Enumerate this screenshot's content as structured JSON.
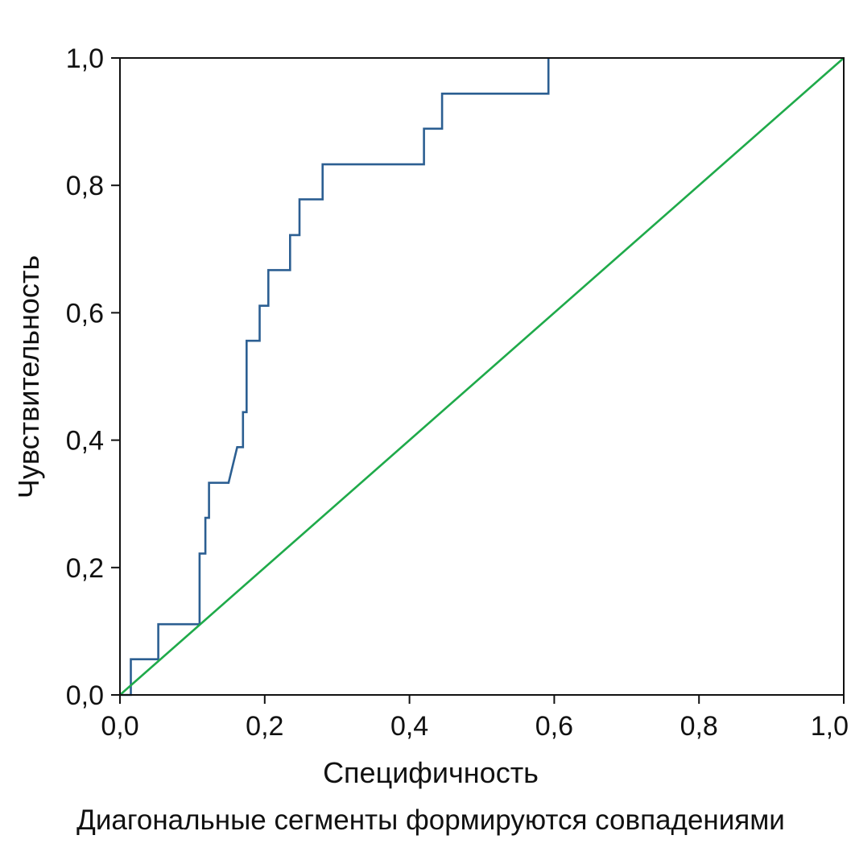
{
  "chart_data": {
    "type": "line",
    "xlabel": "Специфичность",
    "ylabel": "Чувствительность",
    "caption": "Диагональные сегменты формируются совпадениями",
    "xlim": [
      0,
      1
    ],
    "ylim": [
      0,
      1
    ],
    "x_ticks": [
      "0,0",
      "0,2",
      "0,4",
      "0,6",
      "0,8",
      "1,0"
    ],
    "y_ticks": [
      "0,0",
      "0,2",
      "0,4",
      "0,6",
      "0,8",
      "1,0"
    ],
    "grid": false,
    "legend": "none",
    "series": [
      {
        "color": "#2c5f92",
        "step": true,
        "x": [
          0.0,
          0.015,
          0.015,
          0.053,
          0.053,
          0.11,
          0.11,
          0.118,
          0.118,
          0.123,
          0.123,
          0.15,
          0.162,
          0.162,
          0.17,
          0.17,
          0.175,
          0.175,
          0.193,
          0.193,
          0.205,
          0.205,
          0.235,
          0.235,
          0.248,
          0.248,
          0.28,
          0.28,
          0.42,
          0.42,
          0.445,
          0.445,
          0.592,
          0.592
        ],
        "y": [
          0.0,
          0.0,
          0.056,
          0.056,
          0.111,
          0.111,
          0.222,
          0.222,
          0.278,
          0.278,
          0.333,
          0.333,
          0.389,
          0.389,
          0.389,
          0.444,
          0.444,
          0.556,
          0.556,
          0.611,
          0.611,
          0.667,
          0.667,
          0.722,
          0.722,
          0.778,
          0.778,
          0.833,
          0.833,
          0.889,
          0.889,
          0.944,
          0.944,
          1.0
        ]
      },
      {
        "color": "#1faa4a",
        "step": false,
        "x": [
          0.0,
          1.0
        ],
        "y": [
          0.0,
          1.0
        ]
      }
    ]
  }
}
